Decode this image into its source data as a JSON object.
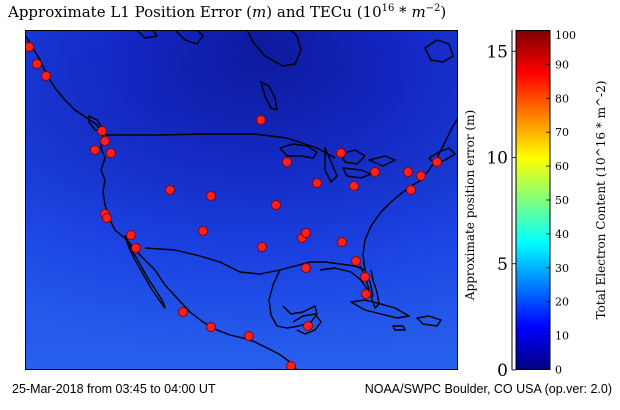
{
  "title": {
    "prefix": "Approximate L1 Position Error (",
    "unit_m": "m",
    "middle": ") and TECu (10",
    "exp": "16",
    "star": " * ",
    "unit_m2": "m",
    "exp2": "−2",
    "suffix": ")"
  },
  "footer": {
    "left": "25-Mar-2018 from 03:45 to 04:00 UT",
    "right": "NOAA/SWPC Boulder, CO USA (op.ver: 2.0)"
  },
  "error_axis": {
    "label": "Approximate position error (m)",
    "range": [
      0,
      16
    ],
    "ticks": [
      "0",
      "5",
      "10",
      "15"
    ]
  },
  "colorbar": {
    "label": "Total Electron Content (10^16 * m^-2)",
    "range": [
      0,
      100
    ],
    "ticks": [
      "0",
      "10",
      "20",
      "30",
      "40",
      "50",
      "60",
      "70",
      "80",
      "90",
      "100"
    ],
    "colors": [
      "#00007f",
      "#0000ff",
      "#007fff",
      "#00ffff",
      "#7fff7f",
      "#ffff00",
      "#ff7f00",
      "#ff0000",
      "#7f0000"
    ]
  },
  "map": {
    "ocean_color": "#1a3fe0",
    "station_color": "#ff2020"
  }
}
